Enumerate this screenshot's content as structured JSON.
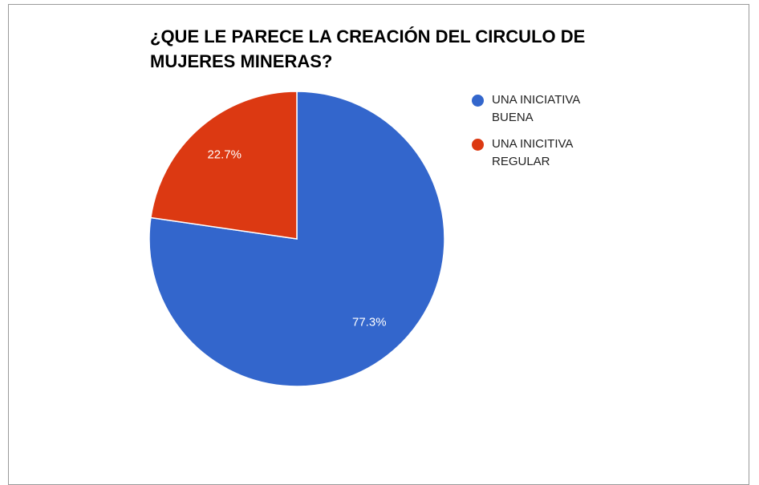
{
  "chart_data": {
    "type": "pie",
    "title": "¿QUE LE PARECE LA CREACIÓN DEL CIRCULO DE MUJERES MINERAS?",
    "categories": [
      "UNA INICIATIVA BUENA",
      "UNA INICITIVA REGULAR"
    ],
    "values": [
      77.3,
      22.7
    ],
    "value_labels": [
      "77.3%",
      "22.7%"
    ],
    "colors": [
      "#3366cc",
      "#dc3912"
    ],
    "legend": "right"
  }
}
